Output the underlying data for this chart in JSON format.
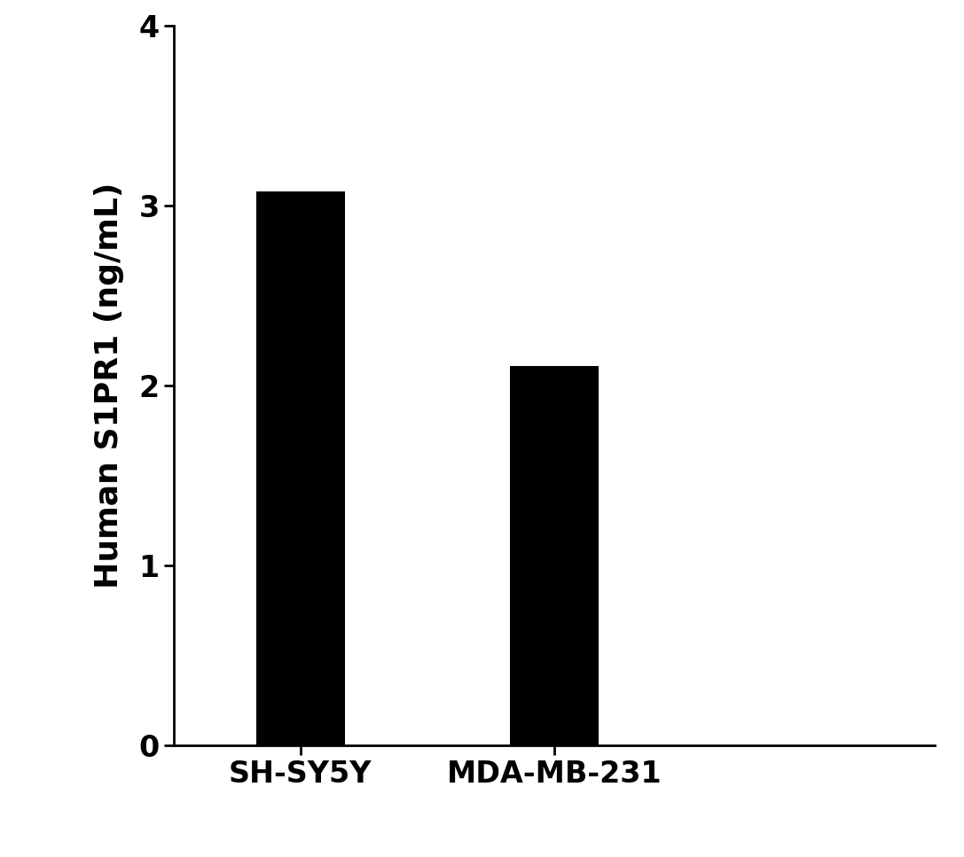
{
  "categories": [
    "SH-SY5Y",
    "MDA-MB-231"
  ],
  "values": [
    3.08,
    2.11
  ],
  "bar_color": "#000000",
  "ylabel": "Human S1PR1 (ng/mL)",
  "ylim": [
    0,
    4
  ],
  "yticks": [
    0,
    1,
    2,
    3,
    4
  ],
  "background_color": "#ffffff",
  "bar_width": 0.35,
  "ylabel_fontsize": 26,
  "tick_fontsize": 24,
  "xtick_fontsize": 24,
  "xlim": [
    -0.5,
    2.5
  ]
}
